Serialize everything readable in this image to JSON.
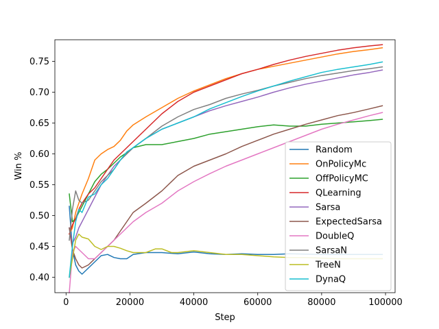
{
  "chart_data": {
    "type": "line",
    "title": "",
    "xlabel": "Step",
    "ylabel": "Win %",
    "xlim": [
      -3500,
      103000
    ],
    "ylim": [
      0.375,
      0.785
    ],
    "xticks": [
      0,
      20000,
      40000,
      60000,
      80000,
      100000
    ],
    "xtick_labels": [
      "0",
      "20000",
      "40000",
      "60000",
      "80000",
      "100000"
    ],
    "yticks": [
      0.4,
      0.45,
      0.5,
      0.55,
      0.6,
      0.65,
      0.7,
      0.75
    ],
    "ytick_labels": [
      "0.40",
      "0.45",
      "0.50",
      "0.55",
      "0.60",
      "0.65",
      "0.70",
      "0.75"
    ],
    "grid": false,
    "legend_position": "lower-right",
    "series": [
      {
        "name": "Random",
        "color": "#1f77b4",
        "points": [
          [
            1000,
            0.515
          ],
          [
            2000,
            0.445
          ],
          [
            3000,
            0.42
          ],
          [
            4000,
            0.41
          ],
          [
            5000,
            0.405
          ],
          [
            7000,
            0.415
          ],
          [
            9000,
            0.425
          ],
          [
            11000,
            0.435
          ],
          [
            13000,
            0.437
          ],
          [
            15000,
            0.432
          ],
          [
            17000,
            0.43
          ],
          [
            19000,
            0.43
          ],
          [
            21000,
            0.437
          ],
          [
            25000,
            0.44
          ],
          [
            30000,
            0.44
          ],
          [
            35000,
            0.438
          ],
          [
            40000,
            0.441
          ],
          [
            45000,
            0.438
          ],
          [
            50000,
            0.437
          ],
          [
            55000,
            0.438
          ],
          [
            60000,
            0.437
          ],
          [
            65000,
            0.437
          ],
          [
            70000,
            0.438
          ],
          [
            80000,
            0.437
          ],
          [
            90000,
            0.437
          ],
          [
            99000,
            0.437
          ]
        ]
      },
      {
        "name": "OnPolicyMc",
        "color": "#ff7f0e",
        "points": [
          [
            1000,
            0.47
          ],
          [
            2000,
            0.48
          ],
          [
            3000,
            0.505
          ],
          [
            4000,
            0.52
          ],
          [
            5000,
            0.535
          ],
          [
            7000,
            0.56
          ],
          [
            9000,
            0.59
          ],
          [
            11000,
            0.6
          ],
          [
            13000,
            0.607
          ],
          [
            15000,
            0.612
          ],
          [
            17000,
            0.622
          ],
          [
            19000,
            0.637
          ],
          [
            21000,
            0.647
          ],
          [
            25000,
            0.66
          ],
          [
            30000,
            0.675
          ],
          [
            35000,
            0.69
          ],
          [
            40000,
            0.702
          ],
          [
            45000,
            0.712
          ],
          [
            50000,
            0.722
          ],
          [
            55000,
            0.73
          ],
          [
            60000,
            0.737
          ],
          [
            65000,
            0.742
          ],
          [
            70000,
            0.747
          ],
          [
            75000,
            0.752
          ],
          [
            80000,
            0.757
          ],
          [
            85000,
            0.762
          ],
          [
            90000,
            0.766
          ],
          [
            95000,
            0.769
          ],
          [
            99000,
            0.772
          ]
        ]
      },
      {
        "name": "OffPolicyMC",
        "color": "#2ca02c",
        "points": [
          [
            1000,
            0.535
          ],
          [
            2000,
            0.49
          ],
          [
            3000,
            0.495
          ],
          [
            4000,
            0.505
          ],
          [
            5000,
            0.515
          ],
          [
            7000,
            0.535
          ],
          [
            9000,
            0.555
          ],
          [
            11000,
            0.567
          ],
          [
            13000,
            0.575
          ],
          [
            15000,
            0.585
          ],
          [
            17000,
            0.595
          ],
          [
            19000,
            0.602
          ],
          [
            21000,
            0.61
          ],
          [
            25000,
            0.615
          ],
          [
            30000,
            0.615
          ],
          [
            35000,
            0.62
          ],
          [
            40000,
            0.625
          ],
          [
            45000,
            0.632
          ],
          [
            50000,
            0.636
          ],
          [
            55000,
            0.64
          ],
          [
            60000,
            0.644
          ],
          [
            65000,
            0.647
          ],
          [
            70000,
            0.645
          ],
          [
            75000,
            0.645
          ],
          [
            80000,
            0.648
          ],
          [
            85000,
            0.65
          ],
          [
            90000,
            0.652
          ],
          [
            95000,
            0.654
          ],
          [
            99000,
            0.656
          ]
        ]
      },
      {
        "name": "QLearning",
        "color": "#d62728",
        "points": [
          [
            1000,
            0.47
          ],
          [
            2000,
            0.485
          ],
          [
            3000,
            0.495
          ],
          [
            4000,
            0.51
          ],
          [
            5000,
            0.52
          ],
          [
            7000,
            0.535
          ],
          [
            9000,
            0.545
          ],
          [
            11000,
            0.56
          ],
          [
            13000,
            0.575
          ],
          [
            15000,
            0.59
          ],
          [
            17000,
            0.6
          ],
          [
            19000,
            0.61
          ],
          [
            21000,
            0.62
          ],
          [
            25000,
            0.64
          ],
          [
            30000,
            0.665
          ],
          [
            35000,
            0.685
          ],
          [
            40000,
            0.7
          ],
          [
            45000,
            0.71
          ],
          [
            50000,
            0.72
          ],
          [
            55000,
            0.73
          ],
          [
            60000,
            0.737
          ],
          [
            65000,
            0.745
          ],
          [
            70000,
            0.752
          ],
          [
            75000,
            0.758
          ],
          [
            80000,
            0.763
          ],
          [
            85000,
            0.768
          ],
          [
            90000,
            0.772
          ],
          [
            95000,
            0.775
          ],
          [
            99000,
            0.777
          ]
        ]
      },
      {
        "name": "Sarsa",
        "color": "#9467bd",
        "points": [
          [
            1000,
            0.48
          ],
          [
            2000,
            0.455
          ],
          [
            3000,
            0.465
          ],
          [
            4000,
            0.48
          ],
          [
            5000,
            0.49
          ],
          [
            7000,
            0.51
          ],
          [
            9000,
            0.53
          ],
          [
            11000,
            0.55
          ],
          [
            13000,
            0.565
          ],
          [
            15000,
            0.58
          ],
          [
            17000,
            0.59
          ],
          [
            19000,
            0.6
          ],
          [
            21000,
            0.61
          ],
          [
            25000,
            0.625
          ],
          [
            30000,
            0.64
          ],
          [
            35000,
            0.65
          ],
          [
            40000,
            0.66
          ],
          [
            45000,
            0.67
          ],
          [
            50000,
            0.678
          ],
          [
            55000,
            0.685
          ],
          [
            60000,
            0.692
          ],
          [
            65000,
            0.7
          ],
          [
            70000,
            0.707
          ],
          [
            75000,
            0.713
          ],
          [
            80000,
            0.718
          ],
          [
            85000,
            0.723
          ],
          [
            90000,
            0.728
          ],
          [
            95000,
            0.732
          ],
          [
            99000,
            0.736
          ]
        ]
      },
      {
        "name": "ExpectedSarsa",
        "color": "#8c564b",
        "points": [
          [
            1000,
            0.48
          ],
          [
            2000,
            0.445
          ],
          [
            3000,
            0.43
          ],
          [
            4000,
            0.42
          ],
          [
            5000,
            0.415
          ],
          [
            7000,
            0.42
          ],
          [
            9000,
            0.43
          ],
          [
            11000,
            0.44
          ],
          [
            13000,
            0.45
          ],
          [
            15000,
            0.46
          ],
          [
            17000,
            0.475
          ],
          [
            19000,
            0.49
          ],
          [
            21000,
            0.505
          ],
          [
            25000,
            0.52
          ],
          [
            30000,
            0.54
          ],
          [
            35000,
            0.565
          ],
          [
            40000,
            0.58
          ],
          [
            45000,
            0.59
          ],
          [
            50000,
            0.6
          ],
          [
            55000,
            0.612
          ],
          [
            60000,
            0.622
          ],
          [
            65000,
            0.632
          ],
          [
            70000,
            0.64
          ],
          [
            75000,
            0.648
          ],
          [
            80000,
            0.655
          ],
          [
            85000,
            0.662
          ],
          [
            90000,
            0.667
          ],
          [
            95000,
            0.673
          ],
          [
            99000,
            0.678
          ]
        ]
      },
      {
        "name": "DoubleQ",
        "color": "#e377c2",
        "points": [
          [
            1000,
            0.375
          ],
          [
            2000,
            0.44
          ],
          [
            3000,
            0.45
          ],
          [
            4000,
            0.445
          ],
          [
            5000,
            0.44
          ],
          [
            7000,
            0.43
          ],
          [
            9000,
            0.43
          ],
          [
            11000,
            0.44
          ],
          [
            13000,
            0.45
          ],
          [
            15000,
            0.46
          ],
          [
            17000,
            0.47
          ],
          [
            19000,
            0.48
          ],
          [
            21000,
            0.49
          ],
          [
            25000,
            0.505
          ],
          [
            30000,
            0.52
          ],
          [
            35000,
            0.54
          ],
          [
            40000,
            0.555
          ],
          [
            45000,
            0.568
          ],
          [
            50000,
            0.58
          ],
          [
            55000,
            0.59
          ],
          [
            60000,
            0.6
          ],
          [
            65000,
            0.61
          ],
          [
            70000,
            0.62
          ],
          [
            75000,
            0.63
          ],
          [
            80000,
            0.64
          ],
          [
            85000,
            0.648
          ],
          [
            90000,
            0.655
          ],
          [
            95000,
            0.662
          ],
          [
            99000,
            0.667
          ]
        ]
      },
      {
        "name": "SarsaN",
        "color": "#7f7f7f",
        "points": [
          [
            1000,
            0.46
          ],
          [
            2000,
            0.51
          ],
          [
            3000,
            0.54
          ],
          [
            4000,
            0.525
          ],
          [
            5000,
            0.52
          ],
          [
            7000,
            0.525
          ],
          [
            9000,
            0.54
          ],
          [
            11000,
            0.555
          ],
          [
            13000,
            0.565
          ],
          [
            15000,
            0.575
          ],
          [
            17000,
            0.59
          ],
          [
            19000,
            0.6
          ],
          [
            21000,
            0.61
          ],
          [
            25000,
            0.625
          ],
          [
            30000,
            0.645
          ],
          [
            35000,
            0.66
          ],
          [
            40000,
            0.672
          ],
          [
            45000,
            0.68
          ],
          [
            50000,
            0.69
          ],
          [
            55000,
            0.697
          ],
          [
            60000,
            0.703
          ],
          [
            65000,
            0.71
          ],
          [
            70000,
            0.716
          ],
          [
            75000,
            0.722
          ],
          [
            80000,
            0.727
          ],
          [
            85000,
            0.731
          ],
          [
            90000,
            0.735
          ],
          [
            95000,
            0.738
          ],
          [
            99000,
            0.741
          ]
        ]
      },
      {
        "name": "TreeN",
        "color": "#bcbd22",
        "points": [
          [
            1000,
            0.4
          ],
          [
            2000,
            0.43
          ],
          [
            3000,
            0.46
          ],
          [
            4000,
            0.47
          ],
          [
            5000,
            0.465
          ],
          [
            7000,
            0.462
          ],
          [
            9000,
            0.45
          ],
          [
            11000,
            0.445
          ],
          [
            13000,
            0.45
          ],
          [
            15000,
            0.45
          ],
          [
            17000,
            0.447
          ],
          [
            19000,
            0.443
          ],
          [
            21000,
            0.44
          ],
          [
            25000,
            0.44
          ],
          [
            28000,
            0.446
          ],
          [
            30000,
            0.446
          ],
          [
            33000,
            0.44
          ],
          [
            35000,
            0.44
          ],
          [
            40000,
            0.443
          ],
          [
            45000,
            0.44
          ],
          [
            50000,
            0.437
          ],
          [
            55000,
            0.437
          ],
          [
            60000,
            0.435
          ],
          [
            65000,
            0.433
          ],
          [
            70000,
            0.432
          ],
          [
            75000,
            0.432
          ],
          [
            80000,
            0.431
          ],
          [
            85000,
            0.43
          ],
          [
            90000,
            0.43
          ],
          [
            95000,
            0.43
          ],
          [
            99000,
            0.43
          ]
        ]
      },
      {
        "name": "DynaQ",
        "color": "#17becf",
        "points": [
          [
            1000,
            0.4
          ],
          [
            2000,
            0.45
          ],
          [
            3000,
            0.49
          ],
          [
            4000,
            0.51
          ],
          [
            5000,
            0.505
          ],
          [
            7000,
            0.53
          ],
          [
            9000,
            0.535
          ],
          [
            11000,
            0.55
          ],
          [
            13000,
            0.56
          ],
          [
            15000,
            0.575
          ],
          [
            17000,
            0.59
          ],
          [
            19000,
            0.603
          ],
          [
            21000,
            0.61
          ],
          [
            25000,
            0.625
          ],
          [
            30000,
            0.64
          ],
          [
            35000,
            0.65
          ],
          [
            40000,
            0.66
          ],
          [
            45000,
            0.673
          ],
          [
            50000,
            0.683
          ],
          [
            55000,
            0.693
          ],
          [
            60000,
            0.702
          ],
          [
            65000,
            0.71
          ],
          [
            70000,
            0.718
          ],
          [
            75000,
            0.725
          ],
          [
            80000,
            0.732
          ],
          [
            85000,
            0.737
          ],
          [
            90000,
            0.741
          ],
          [
            95000,
            0.745
          ],
          [
            99000,
            0.749
          ]
        ]
      }
    ]
  }
}
